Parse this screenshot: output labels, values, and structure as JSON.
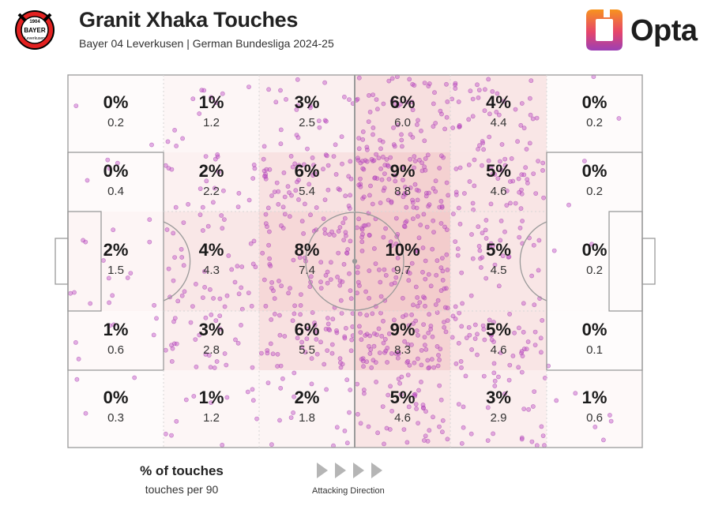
{
  "header": {
    "title": "Granit Xhaka Touches",
    "subtitle": "Bayer 04 Leverkusen | German Bundesliga 2024-25",
    "club_badge": {
      "icon": "bayer-leverkusen-crest-icon",
      "text_top": "1904",
      "text_mid": "BAYER",
      "text_bottom": "Leverkusen"
    },
    "brand": {
      "name": "Opta",
      "icon": "opta-logo-icon"
    }
  },
  "legend": {
    "title": "% of touches",
    "subtitle": "touches per 90",
    "direction_label": "Attacking Direction",
    "direction_icon": "triangle-right-icon"
  },
  "colors": {
    "dot": "#c050c8",
    "dot_stroke": "#a13aa8",
    "heat": "#e07a7a",
    "pitch_line": "#9a9a9a",
    "arrow": "#b5b5b5",
    "opta_gradient": [
      "#f7931e",
      "#e6456b",
      "#9b3fb5"
    ]
  },
  "chart_data": {
    "type": "heatmap",
    "attacking_direction": "left-to-right",
    "zones": [
      {
        "row": 0,
        "col": 0,
        "pct": "0%",
        "per90": "0.2"
      },
      {
        "row": 0,
        "col": 1,
        "pct": "1%",
        "per90": "1.2"
      },
      {
        "row": 0,
        "col": 2,
        "pct": "3%",
        "per90": "2.5"
      },
      {
        "row": 0,
        "col": 3,
        "pct": "6%",
        "per90": "6.0"
      },
      {
        "row": 0,
        "col": 4,
        "pct": "4%",
        "per90": "4.4"
      },
      {
        "row": 0,
        "col": 5,
        "pct": "0%",
        "per90": "0.2"
      },
      {
        "row": 1,
        "col": 0,
        "pct": "0%",
        "per90": "0.4"
      },
      {
        "row": 1,
        "col": 1,
        "pct": "2%",
        "per90": "2.2"
      },
      {
        "row": 1,
        "col": 2,
        "pct": "6%",
        "per90": "5.4"
      },
      {
        "row": 1,
        "col": 3,
        "pct": "9%",
        "per90": "8.8"
      },
      {
        "row": 1,
        "col": 4,
        "pct": "5%",
        "per90": "4.6"
      },
      {
        "row": 1,
        "col": 5,
        "pct": "0%",
        "per90": "0.2"
      },
      {
        "row": 2,
        "col": 0,
        "pct": "2%",
        "per90": "1.5"
      },
      {
        "row": 2,
        "col": 1,
        "pct": "4%",
        "per90": "4.3"
      },
      {
        "row": 2,
        "col": 2,
        "pct": "8%",
        "per90": "7.4"
      },
      {
        "row": 2,
        "col": 3,
        "pct": "10%",
        "per90": "9.7"
      },
      {
        "row": 2,
        "col": 4,
        "pct": "5%",
        "per90": "4.5"
      },
      {
        "row": 2,
        "col": 5,
        "pct": "0%",
        "per90": "0.2"
      },
      {
        "row": 3,
        "col": 0,
        "pct": "1%",
        "per90": "0.6"
      },
      {
        "row": 3,
        "col": 1,
        "pct": "3%",
        "per90": "2.8"
      },
      {
        "row": 3,
        "col": 2,
        "pct": "6%",
        "per90": "5.5"
      },
      {
        "row": 3,
        "col": 3,
        "pct": "9%",
        "per90": "8.3"
      },
      {
        "row": 3,
        "col": 4,
        "pct": "5%",
        "per90": "4.6"
      },
      {
        "row": 3,
        "col": 5,
        "pct": "0%",
        "per90": "0.1"
      },
      {
        "row": 4,
        "col": 0,
        "pct": "0%",
        "per90": "0.3"
      },
      {
        "row": 4,
        "col": 1,
        "pct": "1%",
        "per90": "1.2"
      },
      {
        "row": 4,
        "col": 2,
        "pct": "2%",
        "per90": "1.8"
      },
      {
        "row": 4,
        "col": 3,
        "pct": "5%",
        "per90": "4.6"
      },
      {
        "row": 4,
        "col": 4,
        "pct": "3%",
        "per90": "2.9"
      },
      {
        "row": 4,
        "col": 5,
        "pct": "1%",
        "per90": "0.6"
      }
    ]
  }
}
